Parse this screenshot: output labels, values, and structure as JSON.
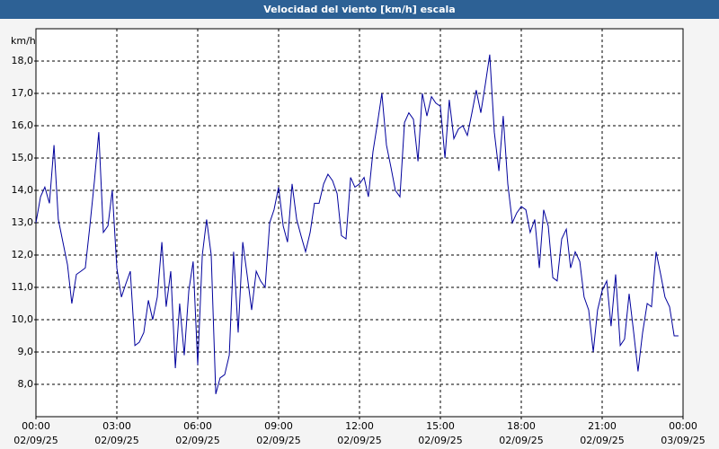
{
  "chart_data": {
    "type": "line",
    "title": "Velocidad del viento [km/h] escala",
    "y_label": "km/h",
    "x": [
      0,
      0.17,
      0.33,
      0.5,
      0.67,
      0.83,
      1,
      1.17,
      1.33,
      1.5,
      1.67,
      1.83,
      2,
      2.17,
      2.33,
      2.5,
      2.67,
      2.83,
      3,
      3.17,
      3.33,
      3.5,
      3.67,
      3.83,
      4,
      4.17,
      4.33,
      4.5,
      4.67,
      4.83,
      5,
      5.17,
      5.33,
      5.5,
      5.67,
      5.83,
      6,
      6.17,
      6.33,
      6.5,
      6.67,
      6.83,
      7,
      7.17,
      7.33,
      7.5,
      7.67,
      7.83,
      8,
      8.17,
      8.33,
      8.5,
      8.67,
      8.83,
      9,
      9.17,
      9.33,
      9.5,
      9.67,
      9.83,
      10,
      10.17,
      10.33,
      10.5,
      10.67,
      10.83,
      11,
      11.17,
      11.33,
      11.5,
      11.67,
      11.83,
      12,
      12.17,
      12.33,
      12.5,
      12.67,
      12.83,
      13,
      13.17,
      13.33,
      13.5,
      13.67,
      13.83,
      14,
      14.17,
      14.33,
      14.5,
      14.67,
      14.83,
      15,
      15.17,
      15.33,
      15.5,
      15.67,
      15.83,
      16,
      16.17,
      16.33,
      16.5,
      16.67,
      16.83,
      17,
      17.17,
      17.33,
      17.5,
      17.67,
      17.83,
      18,
      18.17,
      18.33,
      18.5,
      18.67,
      18.83,
      19,
      19.17,
      19.33,
      19.5,
      19.67,
      19.83,
      20,
      20.17,
      20.33,
      20.5,
      20.67,
      20.83,
      21,
      21.17,
      21.33,
      21.5,
      21.67,
      21.83,
      22,
      22.17,
      22.33,
      22.5,
      22.67,
      22.83,
      23,
      23.17,
      23.33,
      23.5,
      23.67,
      23.83
    ],
    "series": [
      {
        "name": "Velocidad del viento",
        "color": "#00009c",
        "values": [
          13.0,
          13.8,
          14.1,
          13.6,
          15.4,
          13.1,
          12.4,
          11.7,
          10.5,
          11.4,
          11.5,
          11.6,
          12.9,
          14.3,
          15.8,
          12.7,
          12.9,
          14.0,
          11.6,
          10.7,
          11.1,
          11.5,
          9.2,
          9.3,
          9.6,
          10.6,
          10.0,
          10.7,
          12.4,
          10.4,
          11.5,
          8.5,
          10.5,
          8.9,
          10.9,
          11.8,
          8.6,
          12.0,
          13.1,
          12.0,
          7.7,
          8.2,
          8.3,
          8.9,
          12.1,
          9.6,
          12.4,
          11.4,
          10.3,
          11.5,
          11.2,
          11.0,
          13.0,
          13.4,
          14.1,
          12.9,
          12.4,
          14.2,
          13.1,
          12.6,
          12.1,
          12.7,
          13.6,
          13.6,
          14.2,
          14.5,
          14.3,
          13.9,
          12.6,
          12.5,
          14.4,
          14.1,
          14.2,
          14.4,
          13.8,
          15.2,
          16.1,
          17.0,
          15.4,
          14.7,
          14.0,
          13.8,
          16.1,
          16.4,
          16.2,
          14.9,
          17.0,
          16.3,
          16.9,
          16.7,
          16.6,
          15.0,
          16.8,
          15.6,
          15.9,
          16.0,
          15.7,
          16.4,
          17.1,
          16.4,
          17.3,
          18.2,
          15.8,
          14.6,
          16.3,
          14.2,
          13.0,
          13.3,
          13.5,
          13.4,
          12.7,
          13.1,
          11.6,
          13.4,
          12.9,
          11.3,
          11.2,
          12.5,
          12.8,
          11.6,
          12.1,
          11.8,
          10.7,
          10.3,
          9.0,
          10.3,
          10.9,
          11.2,
          9.8,
          11.4,
          9.2,
          9.4,
          10.8,
          9.6,
          8.4,
          9.6,
          10.5,
          10.4,
          12.1,
          11.4,
          10.7,
          10.4,
          9.5,
          9.5
        ]
      }
    ],
    "xlim": [
      0,
      24
    ],
    "xticks": [
      {
        "value": 0,
        "label": [
          "00:00",
          "02/09/25"
        ]
      },
      {
        "value": 3,
        "label": [
          "03:00",
          "02/09/25"
        ]
      },
      {
        "value": 6,
        "label": [
          "06:00",
          "02/09/25"
        ]
      },
      {
        "value": 9,
        "label": [
          "09:00",
          "02/09/25"
        ]
      },
      {
        "value": 12,
        "label": [
          "12:00",
          "02/09/25"
        ]
      },
      {
        "value": 15,
        "label": [
          "15:00",
          "02/09/25"
        ]
      },
      {
        "value": 18,
        "label": [
          "18:00",
          "02/09/25"
        ]
      },
      {
        "value": 21,
        "label": [
          "21:00",
          "02/09/25"
        ]
      },
      {
        "value": 24,
        "label": [
          "00:00",
          "03/09/25"
        ]
      }
    ],
    "ylim": [
      7,
      19
    ],
    "yticks": [
      {
        "value": 8,
        "label": "8,0"
      },
      {
        "value": 9,
        "label": "9,0"
      },
      {
        "value": 10,
        "label": "10,0"
      },
      {
        "value": 11,
        "label": "11,0"
      },
      {
        "value": 12,
        "label": "12,0"
      },
      {
        "value": 13,
        "label": "13,0"
      },
      {
        "value": 14,
        "label": "14,0"
      },
      {
        "value": 15,
        "label": "15,0"
      },
      {
        "value": 16,
        "label": "16,0"
      },
      {
        "value": 17,
        "label": "17,0"
      },
      {
        "value": 18,
        "label": "18,0"
      }
    ],
    "grid": true
  }
}
